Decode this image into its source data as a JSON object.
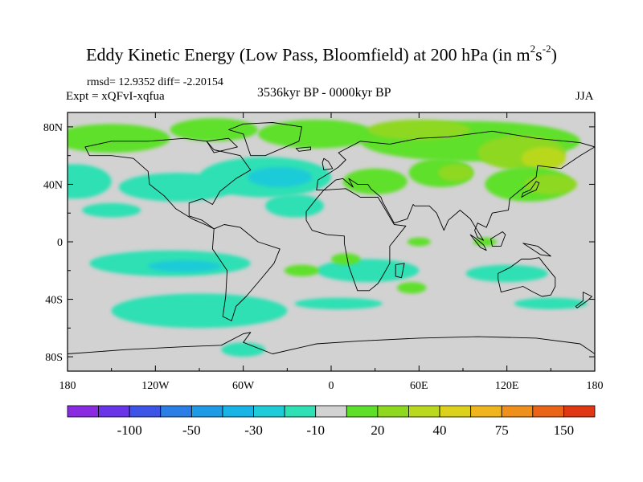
{
  "title": {
    "main": "Eddy Kinetic Energy (Low Pass, Bloomfield) at 200 hPa (in m",
    "sup1": "2",
    "mid": "s",
    "sup2": "-2",
    "end": ")"
  },
  "stats": "rmsd= 12.9352 diff= -2.20154",
  "experiment": "Expt = xQFvI-xqfua",
  "period": "3536kyr BP - 0000kyr BP",
  "season": "JJA",
  "axes": {
    "lon_ticks": [
      {
        "value": -180,
        "label": "180"
      },
      {
        "value": -120,
        "label": "120W"
      },
      {
        "value": -60,
        "label": "60W"
      },
      {
        "value": 0,
        "label": "0"
      },
      {
        "value": 60,
        "label": "60E"
      },
      {
        "value": 120,
        "label": "120E"
      },
      {
        "value": 180,
        "label": "180"
      }
    ],
    "lat_ticks": [
      {
        "value": 80,
        "label": "80N"
      },
      {
        "value": 40,
        "label": "40N"
      },
      {
        "value": 0,
        "label": "0"
      },
      {
        "value": -40,
        "label": "40S"
      },
      {
        "value": -80,
        "label": "80S"
      }
    ],
    "lon_range": [
      -180,
      180
    ],
    "lat_range": [
      -90,
      90
    ]
  },
  "colorbar": {
    "colors": [
      "#8a2be2",
      "#6a35e8",
      "#3c55e6",
      "#2b7ee6",
      "#1e9be6",
      "#18b4e6",
      "#1ecbd8",
      "#2ee0b4",
      "#d2d2d2",
      "#5ee02a",
      "#8ed820",
      "#b9d81e",
      "#dcd21c",
      "#f0b41e",
      "#f0901c",
      "#ea6418",
      "#e03814"
    ],
    "labels": [
      {
        "boundary": 2,
        "text": "-100"
      },
      {
        "boundary": 4,
        "text": "-50"
      },
      {
        "boundary": 6,
        "text": "-30"
      },
      {
        "boundary": 8,
        "text": "-10"
      },
      {
        "boundary": 10,
        "text": "20"
      },
      {
        "boundary": 12,
        "text": "40"
      },
      {
        "boundary": 14,
        "text": "75"
      },
      {
        "boundary": 16,
        "text": "150"
      }
    ]
  },
  "field": {
    "background_color": "#d2d2d2",
    "blobs": [
      {
        "color": "#5ee02a",
        "lon": -150,
        "lat": 72,
        "rlon": 40,
        "rlat": 10
      },
      {
        "color": "#5ee02a",
        "lon": -80,
        "lat": 78,
        "rlon": 30,
        "rlat": 8
      },
      {
        "color": "#5ee02a",
        "lon": -10,
        "lat": 75,
        "rlon": 40,
        "rlat": 10
      },
      {
        "color": "#5ee02a",
        "lon": 95,
        "lat": 70,
        "rlon": 75,
        "rlat": 14
      },
      {
        "color": "#8ed820",
        "lon": 60,
        "lat": 78,
        "rlon": 35,
        "rlat": 7
      },
      {
        "color": "#8ed820",
        "lon": 130,
        "lat": 62,
        "rlon": 30,
        "rlat": 12
      },
      {
        "color": "#b9d81e",
        "lon": 145,
        "lat": 58,
        "rlon": 15,
        "rlat": 8
      },
      {
        "color": "#5ee02a",
        "lon": 135,
        "lat": 40,
        "rlon": 30,
        "rlat": 12
      },
      {
        "color": "#8ed820",
        "lon": 150,
        "lat": 40,
        "rlon": 18,
        "rlat": 7
      },
      {
        "color": "#5ee02a",
        "lon": 30,
        "lat": 42,
        "rlon": 22,
        "rlat": 9
      },
      {
        "color": "#5ee02a",
        "lon": 75,
        "lat": 48,
        "rlon": 22,
        "rlat": 10
      },
      {
        "color": "#8ed820",
        "lon": 85,
        "lat": 48,
        "rlon": 12,
        "rlat": 6
      },
      {
        "color": "#2ee0b4",
        "lon": -175,
        "lat": 42,
        "rlon": 25,
        "rlat": 12
      },
      {
        "color": "#2ee0b4",
        "lon": -45,
        "lat": 45,
        "rlon": 45,
        "rlat": 14
      },
      {
        "color": "#1ecbd8",
        "lon": -35,
        "lat": 45,
        "rlon": 22,
        "rlat": 7
      },
      {
        "color": "#2ee0b4",
        "lon": -105,
        "lat": 38,
        "rlon": 40,
        "rlat": 10
      },
      {
        "color": "#2ee0b4",
        "lon": -25,
        "lat": 25,
        "rlon": 20,
        "rlat": 8
      },
      {
        "color": "#2ee0b4",
        "lon": -150,
        "lat": 22,
        "rlon": 20,
        "rlat": 5
      },
      {
        "color": "#2ee0b4",
        "lon": -110,
        "lat": -15,
        "rlon": 55,
        "rlat": 9
      },
      {
        "color": "#1ecbd8",
        "lon": -100,
        "lat": -17,
        "rlon": 25,
        "rlat": 4
      },
      {
        "color": "#2ee0b4",
        "lon": 25,
        "lat": -20,
        "rlon": 35,
        "rlat": 8
      },
      {
        "color": "#2ee0b4",
        "lon": 120,
        "lat": -22,
        "rlon": 28,
        "rlat": 6
      },
      {
        "color": "#2ee0b4",
        "lon": 5,
        "lat": -43,
        "rlon": 30,
        "rlat": 4
      },
      {
        "color": "#2ee0b4",
        "lon": 150,
        "lat": -43,
        "rlon": 25,
        "rlat": 4
      },
      {
        "color": "#2ee0b4",
        "lon": -90,
        "lat": -48,
        "rlon": 60,
        "rlat": 12
      },
      {
        "color": "#2ee0b4",
        "lon": -60,
        "lat": -75,
        "rlon": 15,
        "rlat": 5
      },
      {
        "color": "#5ee02a",
        "lon": 60,
        "lat": 0,
        "rlon": 8,
        "rlat": 3
      },
      {
        "color": "#5ee02a",
        "lon": 105,
        "lat": 0,
        "rlon": 8,
        "rlat": 3
      },
      {
        "color": "#5ee02a",
        "lon": 10,
        "lat": -12,
        "rlon": 10,
        "rlat": 4
      },
      {
        "color": "#5ee02a",
        "lon": 55,
        "lat": -32,
        "rlon": 10,
        "rlat": 4
      },
      {
        "color": "#5ee02a",
        "lon": -20,
        "lat": -20,
        "rlon": 12,
        "rlat": 4
      }
    ]
  },
  "continents": [
    {
      "name": "north-america",
      "points": [
        [
          -168,
          66
        ],
        [
          -150,
          70
        ],
        [
          -125,
          70
        ],
        [
          -100,
          72
        ],
        [
          -85,
          70
        ],
        [
          -80,
          64
        ],
        [
          -62,
          60
        ],
        [
          -55,
          50
        ],
        [
          -65,
          44
        ],
        [
          -76,
          35
        ],
        [
          -81,
          26
        ],
        [
          -88,
          30
        ],
        [
          -97,
          27
        ],
        [
          -97,
          18
        ],
        [
          -88,
          15
        ],
        [
          -80,
          9
        ],
        [
          -86,
          12
        ],
        [
          -95,
          16
        ],
        [
          -106,
          23
        ],
        [
          -114,
          32
        ],
        [
          -124,
          40
        ],
        [
          -125,
          49
        ],
        [
          -135,
          58
        ],
        [
          -150,
          60
        ],
        [
          -165,
          60
        ]
      ]
    },
    {
      "name": "greenland",
      "points": [
        [
          -55,
          60
        ],
        [
          -45,
          60
        ],
        [
          -22,
          70
        ],
        [
          -20,
          80
        ],
        [
          -40,
          83
        ],
        [
          -60,
          82
        ],
        [
          -70,
          78
        ],
        [
          -60,
          75
        ]
      ]
    },
    {
      "name": "south-america",
      "points": [
        [
          -80,
          9
        ],
        [
          -73,
          12
        ],
        [
          -62,
          10
        ],
        [
          -50,
          0
        ],
        [
          -35,
          -5
        ],
        [
          -39,
          -15
        ],
        [
          -48,
          -26
        ],
        [
          -58,
          -38
        ],
        [
          -65,
          -45
        ],
        [
          -68,
          -55
        ],
        [
          -74,
          -52
        ],
        [
          -72,
          -38
        ],
        [
          -71,
          -20
        ],
        [
          -81,
          -5
        ]
      ]
    },
    {
      "name": "eurasia",
      "points": [
        [
          -10,
          36
        ],
        [
          -9,
          43
        ],
        [
          -1,
          48
        ],
        [
          5,
          52
        ],
        [
          10,
          57
        ],
        [
          5,
          62
        ],
        [
          20,
          70
        ],
        [
          40,
          68
        ],
        [
          60,
          72
        ],
        [
          80,
          73
        ],
        [
          110,
          77
        ],
        [
          140,
          72
        ],
        [
          170,
          69
        ],
        [
          180,
          66
        ],
        [
          170,
          60
        ],
        [
          157,
          51
        ],
        [
          141,
          53
        ],
        [
          140,
          45
        ],
        [
          128,
          35
        ],
        [
          122,
          30
        ],
        [
          121,
          22
        ],
        [
          110,
          20
        ],
        [
          106,
          10
        ],
        [
          100,
          13
        ],
        [
          98,
          8
        ],
        [
          100,
          3
        ],
        [
          104,
          1
        ],
        [
          95,
          16
        ],
        [
          88,
          22
        ],
        [
          80,
          15
        ],
        [
          77,
          8
        ],
        [
          72,
          20
        ],
        [
          67,
          25
        ],
        [
          57,
          25
        ],
        [
          56,
          26
        ],
        [
          52,
          16
        ],
        [
          43,
          13
        ],
        [
          35,
          28
        ],
        [
          34,
          31
        ],
        [
          27,
          37
        ],
        [
          25,
          40
        ],
        [
          18,
          40
        ],
        [
          12,
          44
        ],
        [
          15,
          38
        ],
        [
          8,
          44
        ],
        [
          3,
          43
        ],
        [
          -5,
          36
        ]
      ]
    },
    {
      "name": "africa",
      "points": [
        [
          -17,
          21
        ],
        [
          -10,
          30
        ],
        [
          -5,
          36
        ],
        [
          10,
          37
        ],
        [
          20,
          31
        ],
        [
          32,
          31
        ],
        [
          43,
          12
        ],
        [
          51,
          11
        ],
        [
          40,
          -3
        ],
        [
          40,
          -15
        ],
        [
          35,
          -24
        ],
        [
          32,
          -29
        ],
        [
          26,
          -34
        ],
        [
          18,
          -34
        ],
        [
          12,
          -17
        ],
        [
          9,
          -1
        ],
        [
          9,
          4
        ],
        [
          -3,
          5
        ],
        [
          -13,
          8
        ],
        [
          -17,
          15
        ]
      ]
    },
    {
      "name": "australia",
      "points": [
        [
          114,
          -22
        ],
        [
          122,
          -18
        ],
        [
          130,
          -12
        ],
        [
          136,
          -12
        ],
        [
          142,
          -11
        ],
        [
          145,
          -15
        ],
        [
          153,
          -25
        ],
        [
          153,
          -31
        ],
        [
          150,
          -37
        ],
        [
          144,
          -38
        ],
        [
          138,
          -35
        ],
        [
          131,
          -31
        ],
        [
          116,
          -35
        ],
        [
          114,
          -26
        ]
      ]
    },
    {
      "name": "antarctica-coast",
      "points": [
        [
          -180,
          -78
        ],
        [
          -140,
          -75
        ],
        [
          -100,
          -73
        ],
        [
          -75,
          -72
        ],
        [
          -60,
          -64
        ],
        [
          -55,
          -63
        ],
        [
          -60,
          -70
        ],
        [
          -40,
          -78
        ],
        [
          -10,
          -71
        ],
        [
          20,
          -69
        ],
        [
          60,
          -67
        ],
        [
          100,
          -66
        ],
        [
          140,
          -67
        ],
        [
          170,
          -71
        ],
        [
          180,
          -78
        ]
      ],
      "open": true
    },
    {
      "name": "madagascar",
      "points": [
        [
          44,
          -16
        ],
        [
          50,
          -15
        ],
        [
          48,
          -25
        ],
        [
          44,
          -24
        ]
      ]
    },
    {
      "name": "britain",
      "points": [
        [
          -5,
          50
        ],
        [
          1,
          51
        ],
        [
          -2,
          56
        ],
        [
          -5,
          58
        ],
        [
          -6,
          55
        ]
      ]
    },
    {
      "name": "japan",
      "points": [
        [
          130,
          31
        ],
        [
          135,
          34
        ],
        [
          140,
          36
        ],
        [
          142,
          41
        ],
        [
          140,
          42
        ],
        [
          136,
          36
        ],
        [
          131,
          34
        ]
      ]
    },
    {
      "name": "new-zealand",
      "points": [
        [
          172,
          -35
        ],
        [
          178,
          -38
        ],
        [
          175,
          -41
        ],
        [
          168,
          -46
        ],
        [
          167,
          -45
        ],
        [
          172,
          -41
        ]
      ]
    },
    {
      "name": "borneo",
      "points": [
        [
          109,
          2
        ],
        [
          117,
          7
        ],
        [
          119,
          5
        ],
        [
          116,
          -3
        ],
        [
          110,
          -3
        ]
      ]
    },
    {
      "name": "sumatra",
      "points": [
        [
          95,
          5
        ],
        [
          98,
          3
        ],
        [
          104,
          -2
        ],
        [
          106,
          -6
        ],
        [
          102,
          -4
        ]
      ]
    },
    {
      "name": "new-guinea",
      "points": [
        [
          131,
          -1
        ],
        [
          141,
          -3
        ],
        [
          150,
          -10
        ],
        [
          143,
          -9
        ],
        [
          137,
          -5
        ]
      ]
    },
    {
      "name": "iceland",
      "points": [
        [
          -24,
          65
        ],
        [
          -14,
          66
        ],
        [
          -14,
          64
        ],
        [
          -22,
          63
        ]
      ]
    },
    {
      "name": "baffin-island",
      "points": [
        [
          -80,
          62
        ],
        [
          -64,
          66
        ],
        [
          -70,
          72
        ],
        [
          -85,
          70
        ]
      ]
    }
  ]
}
